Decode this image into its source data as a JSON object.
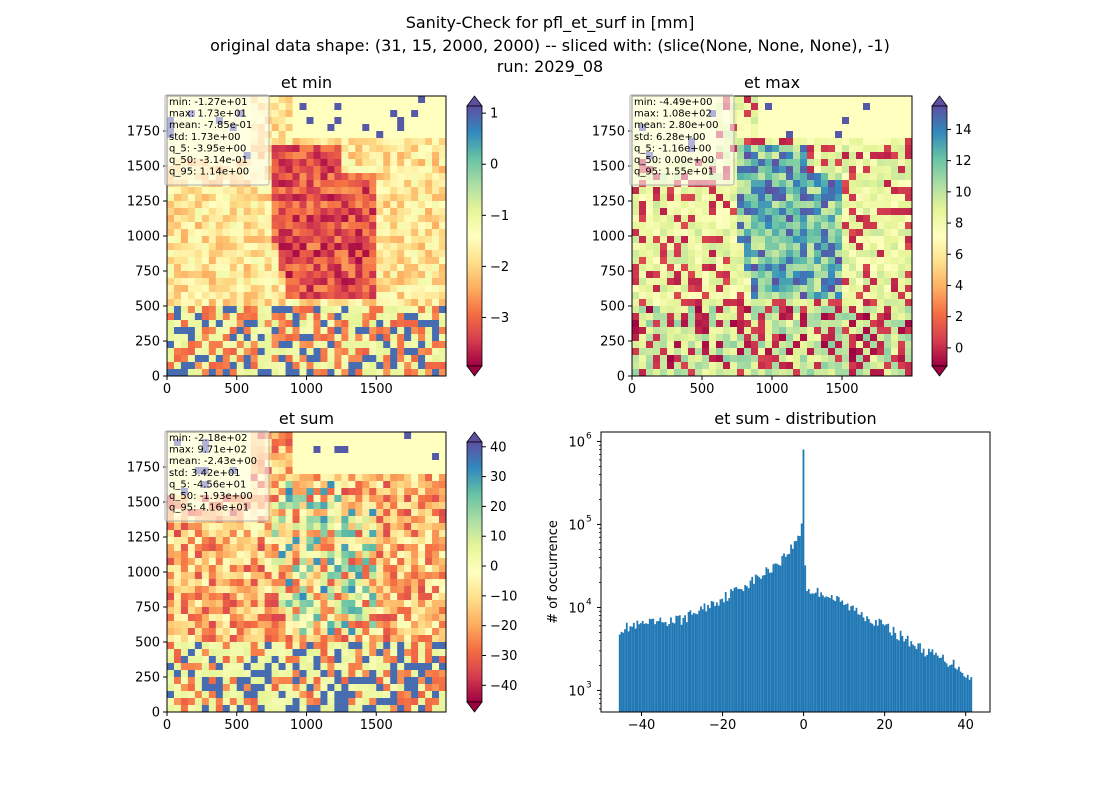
{
  "suptitle": {
    "line1": "Sanity-Check for pfl_et_surf in [mm]",
    "line2": "original data shape: (31, 15, 2000, 2000) -- sliced with: (slice(None, None, None), -1)",
    "line3": "run: 2029_08"
  },
  "colors": {
    "hist_bar": "#1f77b4",
    "land_low": "#9e0142",
    "ocean": "#ffffbf"
  },
  "chart_data": [
    {
      "type": "heatmap",
      "title": "et min",
      "x_ticks": [
        0,
        500,
        1000,
        1500
      ],
      "y_ticks": [
        0,
        250,
        500,
        750,
        1000,
        1250,
        1500,
        1750
      ],
      "xlim": [
        0,
        2000
      ],
      "ylim": [
        0,
        2000
      ],
      "colormap": "Spectral",
      "colorbar_range": [
        -3.95,
        1.14
      ],
      "colorbar_ticks": [
        1,
        0,
        -1,
        -2,
        -3
      ],
      "colorbar_tick_labels": [
        "1",
        "0",
        "−1",
        "−2",
        "−3"
      ],
      "stats": [
        "min: -1.27e+01",
        "max: 1.73e+01",
        "mean: -7.85e-01",
        "std: 1.73e+00",
        "q_5: -3.95e+00",
        "q_50: -3.14e-01",
        "q_95: 1.14e+00"
      ]
    },
    {
      "type": "heatmap",
      "title": "et max",
      "x_ticks": [
        0,
        500,
        1000,
        1500
      ],
      "y_ticks": [
        0,
        250,
        500,
        750,
        1000,
        1250,
        1500,
        1750
      ],
      "xlim": [
        0,
        2000
      ],
      "ylim": [
        0,
        2000
      ],
      "colormap": "Spectral",
      "colorbar_range": [
        -1.16,
        15.5
      ],
      "colorbar_ticks": [
        14,
        12,
        10,
        8,
        6,
        4,
        2,
        0
      ],
      "colorbar_tick_labels": [
        "14",
        "12",
        "10",
        "8",
        "6",
        "4",
        "2",
        "0"
      ],
      "stats": [
        "min: -4.49e+00",
        "max: 1.08e+02",
        "mean: 2.80e+00",
        "std: 6.28e+00",
        "q_5: -1.16e+00",
        "q_50: 0.00e+00",
        "q_95: 1.55e+01"
      ]
    },
    {
      "type": "heatmap",
      "title": "et sum",
      "x_ticks": [
        0,
        500,
        1000,
        1500
      ],
      "y_ticks": [
        0,
        250,
        500,
        750,
        1000,
        1250,
        1500,
        1750
      ],
      "xlim": [
        0,
        2000
      ],
      "ylim": [
        0,
        2000
      ],
      "colormap": "Spectral",
      "colorbar_range": [
        -45.6,
        41.6
      ],
      "colorbar_ticks": [
        40,
        30,
        20,
        10,
        0,
        -10,
        -20,
        -30,
        -40
      ],
      "colorbar_tick_labels": [
        "40",
        "30",
        "20",
        "10",
        "0",
        "−10",
        "−20",
        "−30",
        "−40"
      ],
      "stats": [
        "min: -2.18e+02",
        "max: 9.71e+02",
        "mean: -2.43e+00",
        "std: 3.42e+01",
        "q_5: -4.56e+01",
        "q_50: -1.93e+00",
        "q_95: 4.16e+01"
      ]
    },
    {
      "type": "bar",
      "title": "et sum - distribution",
      "ylabel": "# of occurrence",
      "xlabel": "",
      "yscale": "log",
      "xlim": [
        -50,
        46
      ],
      "ylim": [
        550,
        1300000
      ],
      "x_ticks": [
        -40,
        -20,
        0,
        20,
        40
      ],
      "x_tick_labels": [
        "−40",
        "−20",
        "0",
        "20",
        "40"
      ],
      "y_ticks": [
        1000,
        10000,
        100000,
        1000000
      ],
      "y_tick_labels": [
        "10",
        "10",
        "10",
        "10"
      ],
      "y_tick_exponents": [
        "3",
        "4",
        "5",
        "6"
      ],
      "bin_range": [
        -45.6,
        41.6
      ],
      "bin_width": 0.436,
      "histogram_profile": [
        {
          "x": -45.6,
          "y": 5500
        },
        {
          "x": -40,
          "y": 6200
        },
        {
          "x": -30,
          "y": 7200
        },
        {
          "x": -20,
          "y": 13000
        },
        {
          "x": -10,
          "y": 25000
        },
        {
          "x": -5,
          "y": 40000
        },
        {
          "x": -2,
          "y": 60000
        },
        {
          "x": -0.5,
          "y": 90000
        },
        {
          "x": 0,
          "y": 800000
        },
        {
          "x": 0.5,
          "y": 16000
        },
        {
          "x": 5,
          "y": 15000
        },
        {
          "x": 10,
          "y": 11000
        },
        {
          "x": 20,
          "y": 6000
        },
        {
          "x": 30,
          "y": 3000
        },
        {
          "x": 38,
          "y": 2000
        },
        {
          "x": 41.6,
          "y": 1300
        }
      ]
    }
  ]
}
